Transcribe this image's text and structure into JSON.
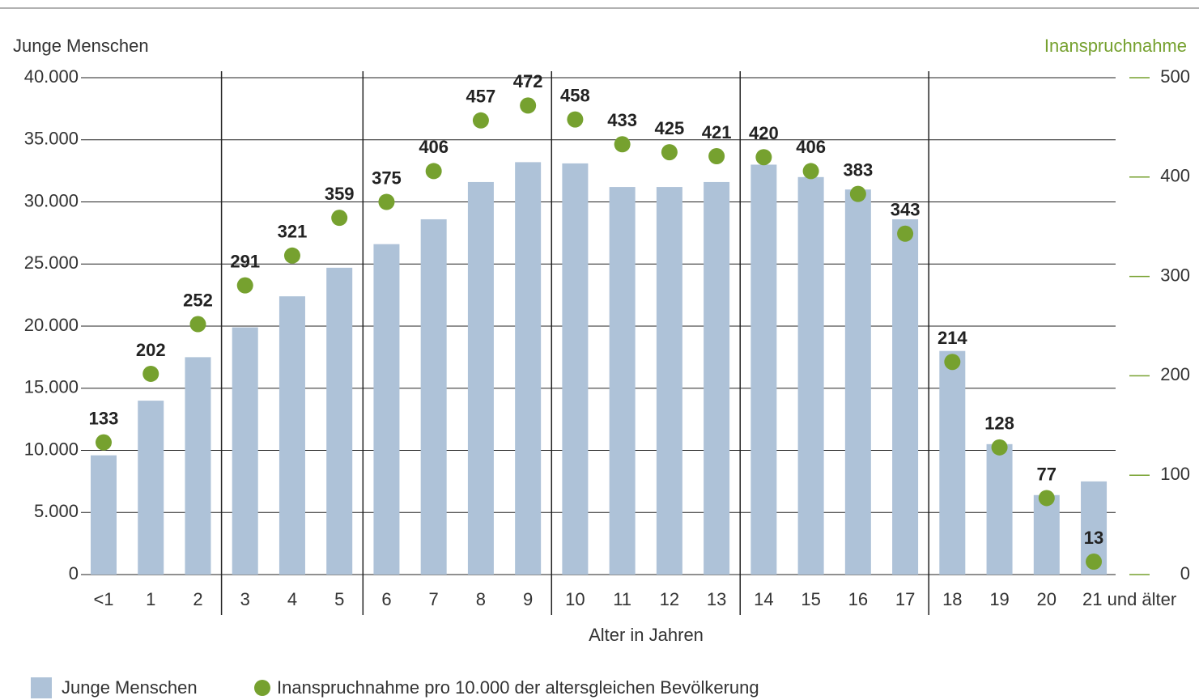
{
  "chart_data": {
    "type": "bar",
    "y_label": "Junge Menschen",
    "y2_label": "Inanspruchnahme",
    "x_label": "Alter in Jahren",
    "categories": [
      "<1",
      "1",
      "2",
      "3",
      "4",
      "5",
      "6",
      "7",
      "8",
      "9",
      "10",
      "11",
      "12",
      "13",
      "14",
      "15",
      "16",
      "17",
      "18",
      "19",
      "20",
      "21 und älter"
    ],
    "series": [
      {
        "name": "Junge Menschen",
        "type": "bar",
        "color": "#aec2d8",
        "values": [
          9600,
          14000,
          17500,
          19900,
          22400,
          24700,
          26600,
          28600,
          31600,
          33200,
          33100,
          31200,
          31200,
          31600,
          33000,
          32000,
          31000,
          28600,
          18000,
          10500,
          6400,
          7500
        ]
      },
      {
        "name": "Inanspruchnahme pro 10.000 der altersgleichen Bevölkerung",
        "type": "scatter",
        "axis": "y2",
        "color": "#76a12f",
        "values": [
          133,
          202,
          252,
          291,
          321,
          359,
          375,
          406,
          457,
          472,
          458,
          433,
          425,
          421,
          420,
          406,
          383,
          343,
          214,
          128,
          77,
          13
        ]
      }
    ],
    "ylim": [
      0,
      40000
    ],
    "yticks": [
      0,
      {
        "value": 5000,
        "label": "5.000"
      },
      {
        "value": 10000,
        "label": "10.000"
      },
      {
        "value": 15000,
        "label": "15.000"
      },
      {
        "value": 20000,
        "label": "20.000"
      },
      {
        "value": 25000,
        "label": "25.000"
      },
      {
        "value": 30000,
        "label": "30.000"
      },
      {
        "value": 35000,
        "label": "35.000"
      },
      {
        "value": 40000,
        "label": "40.000"
      }
    ],
    "y2lim": [
      0,
      500
    ],
    "y2ticks": [
      0,
      100,
      200,
      300,
      400,
      500
    ],
    "grid": true,
    "legend": "bottom-left"
  }
}
